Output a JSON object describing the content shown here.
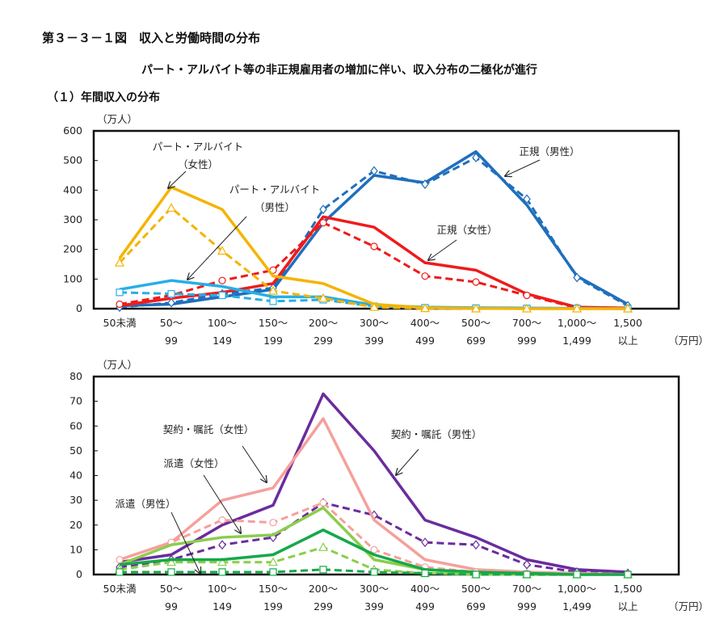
{
  "header": {
    "figure_title": "第３－３－１図　収入と労働時間の分布",
    "subtitle": "パート・アルバイト等の非正規雇用者の増加に伴い、収入分布の二極化が進行",
    "section_title": "（１）年間収入の分布"
  },
  "chart_data": [
    {
      "type": "line",
      "yunit": "（万人）",
      "xunit": "（万円）",
      "ylim": [
        0,
        600
      ],
      "yticks": [
        0,
        100,
        200,
        300,
        400,
        500,
        600
      ],
      "categories": [
        [
          "50未満",
          ""
        ],
        [
          "50～",
          "99"
        ],
        [
          "100～",
          "149"
        ],
        [
          "150～",
          "199"
        ],
        [
          "200～",
          "299"
        ],
        [
          "300～",
          "399"
        ],
        [
          "400～",
          "499"
        ],
        [
          "500～",
          "699"
        ],
        [
          "700～",
          "999"
        ],
        [
          "1,000～",
          "1,499"
        ],
        [
          "1,500",
          "以上"
        ]
      ],
      "grid": false,
      "series": [
        {
          "group": "正規（男性）",
          "color": "#1f6fbd",
          "dash": false,
          "marker": "none",
          "values": [
            10,
            15,
            40,
            65,
            290,
            450,
            425,
            530,
            350,
            110,
            15
          ]
        },
        {
          "group": "正規（男性）",
          "color": "#1f6fbd",
          "dash": true,
          "marker": "diamond",
          "values": [
            5,
            20,
            50,
            70,
            335,
            465,
            420,
            510,
            370,
            105,
            10
          ]
        },
        {
          "group": "正規（女性）",
          "color": "#ee1b1b",
          "dash": false,
          "marker": "none",
          "values": [
            10,
            35,
            55,
            85,
            310,
            275,
            155,
            130,
            50,
            5,
            2
          ]
        },
        {
          "group": "正規（女性）",
          "color": "#ee1b1b",
          "dash": true,
          "marker": "circle",
          "values": [
            15,
            45,
            95,
            130,
            290,
            210,
            110,
            90,
            45,
            3,
            2
          ]
        },
        {
          "group": "パート・アルバイト（男性）",
          "color": "#27aee6",
          "dash": false,
          "marker": "none",
          "values": [
            65,
            95,
            75,
            40,
            40,
            12,
            5,
            3,
            2,
            1,
            0
          ]
        },
        {
          "group": "パート・アルバイト（男性）",
          "color": "#27aee6",
          "dash": true,
          "marker": "square",
          "values": [
            55,
            50,
            45,
            25,
            30,
            8,
            3,
            2,
            1,
            1,
            0
          ]
        },
        {
          "group": "パート・アルバイト（女性）",
          "color": "#f4b400",
          "dash": false,
          "marker": "none",
          "values": [
            170,
            410,
            335,
            110,
            85,
            15,
            3,
            1,
            0,
            0,
            0
          ]
        },
        {
          "group": "パート・アルバイト（女性）",
          "color": "#f4b400",
          "dash": true,
          "marker": "triangle",
          "values": [
            155,
            340,
            195,
            60,
            35,
            5,
            1,
            0,
            0,
            0,
            0
          ]
        }
      ],
      "annotations": [
        {
          "lines": [
            "パート・アルバイト",
            "（女性）"
          ]
        },
        {
          "lines": [
            "パート・アルバイト",
            "（男性）"
          ]
        },
        {
          "lines": [
            "正規（男性）"
          ]
        },
        {
          "lines": [
            "正規（女性）"
          ]
        }
      ]
    },
    {
      "type": "line",
      "yunit": "（万人）",
      "xunit": "（万円）",
      "ylim": [
        0,
        80
      ],
      "yticks": [
        0,
        10,
        20,
        30,
        40,
        50,
        60,
        70,
        80
      ],
      "categories": [
        [
          "50未満",
          ""
        ],
        [
          "50～",
          "99"
        ],
        [
          "100～",
          "149"
        ],
        [
          "150～",
          "199"
        ],
        [
          "200～",
          "299"
        ],
        [
          "300～",
          "399"
        ],
        [
          "400～",
          "499"
        ],
        [
          "500～",
          "699"
        ],
        [
          "700～",
          "999"
        ],
        [
          "1,000～",
          "1,499"
        ],
        [
          "1,500",
          "以上"
        ]
      ],
      "grid": false,
      "series": [
        {
          "group": "契約・嘱託（男性）",
          "color": "#6a2c9e",
          "dash": false,
          "marker": "none",
          "values": [
            5,
            8,
            20,
            28,
            73,
            50,
            22,
            15,
            6,
            2,
            1
          ]
        },
        {
          "group": "契約・嘱託（男性）",
          "color": "#6a2c9e",
          "dash": true,
          "marker": "diamond",
          "values": [
            3,
            6,
            12,
            15,
            29,
            24,
            13,
            12,
            4,
            1,
            0.5
          ]
        },
        {
          "group": "契約・嘱託（女性）",
          "color": "#f5a09c",
          "dash": false,
          "marker": "none",
          "values": [
            6,
            13,
            30,
            35,
            63,
            22,
            6,
            2,
            1,
            0.5,
            0
          ]
        },
        {
          "group": "契約・嘱託（女性）",
          "color": "#f5a09c",
          "dash": true,
          "marker": "circle",
          "values": [
            6,
            13,
            22,
            21,
            29,
            10,
            3,
            1,
            0.5,
            0,
            0
          ]
        },
        {
          "group": "派遣（女性）",
          "color": "#8ccd4c",
          "dash": false,
          "marker": "none",
          "values": [
            4,
            12,
            15,
            16,
            27,
            6,
            2,
            0.5,
            0,
            0,
            0
          ]
        },
        {
          "group": "派遣（女性）",
          "color": "#8ccd4c",
          "dash": true,
          "marker": "triangle",
          "values": [
            2,
            5,
            5,
            5,
            11,
            2,
            0.5,
            0,
            0,
            0,
            0
          ]
        },
        {
          "group": "派遣（男性）",
          "color": "#16a84a",
          "dash": false,
          "marker": "none",
          "values": [
            4,
            6,
            6,
            8,
            18,
            8,
            2,
            1,
            0.5,
            0,
            0
          ]
        },
        {
          "group": "派遣（男性）",
          "color": "#16a84a",
          "dash": true,
          "marker": "square",
          "values": [
            1,
            1,
            1,
            1,
            2,
            1,
            0.5,
            0,
            0,
            0,
            0
          ]
        }
      ],
      "annotations": [
        {
          "lines": [
            "契約・嘱託（女性）"
          ]
        },
        {
          "lines": [
            "契約・嘱託（男性）"
          ]
        },
        {
          "lines": [
            "派遣（女性）"
          ]
        },
        {
          "lines": [
            "派遣（男性）"
          ]
        }
      ]
    }
  ]
}
